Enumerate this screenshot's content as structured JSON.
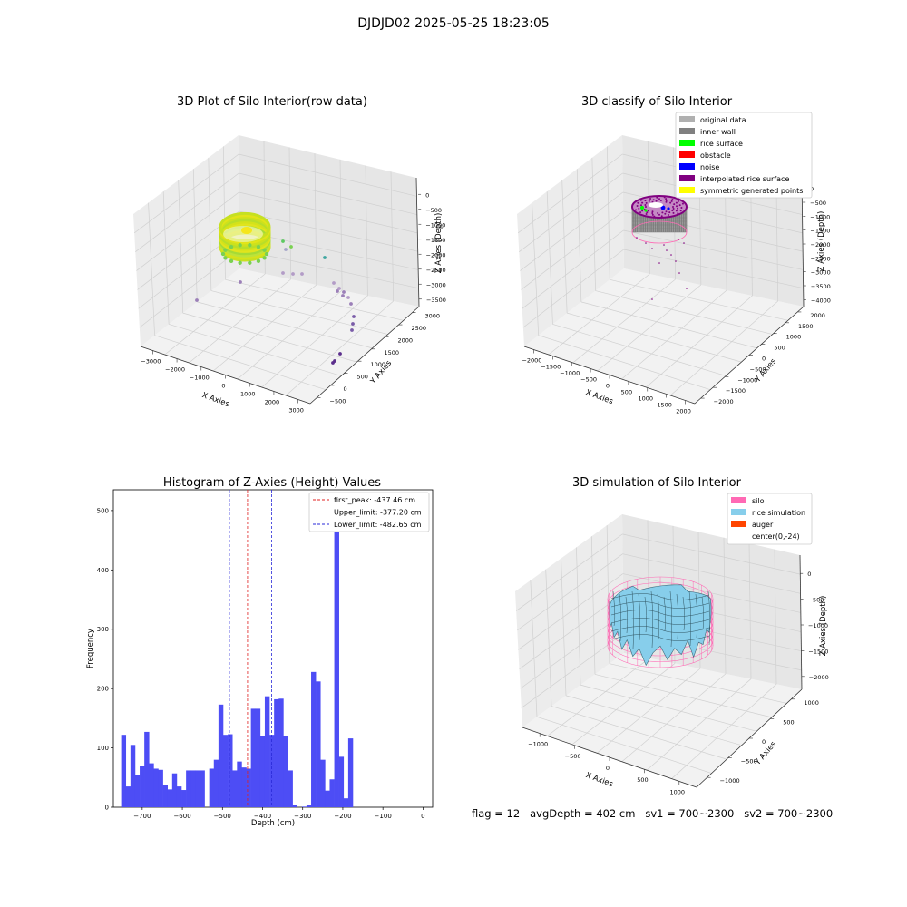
{
  "suptitle": "DJDJD02 2025-05-25 18:23:05",
  "footer": "flag = 12   avgDepth = 402 cm   sv1 = 700~2300   sv2 = 700~2300",
  "colors": {
    "hist_bar": "#4d4df5",
    "first_peak": "#e02020",
    "limit_lines": "#2a2ad8",
    "silo": "#ff69b4",
    "rice_simulation": "#87ceeb",
    "auger": "#ff4500",
    "original_data": "#b0b0b0",
    "inner_wall": "#808080",
    "rice_surface": "#00ff00",
    "obstacle": "#ff0000",
    "noise": "#0000ff",
    "interpolated_rice_surface": "#800080",
    "symmetric_generated_points": "#ffff00"
  },
  "chart_data": [
    {
      "type": "scatter",
      "projection": "3d",
      "title": "3D Plot of Silo Interior(row data)",
      "xlabel": "X Axies",
      "ylabel": "Y Axies",
      "zlabel": "Z Axies (Depth)",
      "x_ticks": [
        "−3000",
        "−2000",
        "−1000",
        "0",
        "1000",
        "2000",
        "3000"
      ],
      "y_ticks": [
        "−500",
        "0",
        "500",
        "1000",
        "1500",
        "2000",
        "2500",
        "3000"
      ],
      "z_ticks": [
        "0",
        "−500",
        "−1000",
        "−1500",
        "−2000",
        "−2500",
        "−3000",
        "−3500"
      ],
      "colormap": "viridis",
      "grid": true
    },
    {
      "type": "scatter",
      "projection": "3d",
      "title": "3D classify of Silo Interior",
      "xlabel": "X Axies",
      "ylabel": "Y Axies",
      "zlabel": "Z Axies (Depth)",
      "x_ticks": [
        "−2000",
        "−1500",
        "−1000",
        "−500",
        "0",
        "500",
        "1000",
        "1500",
        "2000"
      ],
      "y_ticks": [
        "−2000",
        "−1500",
        "−1000",
        "−500",
        "0",
        "500",
        "1000",
        "1500",
        "2000"
      ],
      "z_ticks": [
        "0",
        "−500",
        "−1000",
        "−1500",
        "−2000",
        "−2500",
        "−3000",
        "−3500",
        "−4000"
      ],
      "legend_position": "top-right",
      "legend": [
        {
          "label": "original data",
          "color": "#b0b0b0"
        },
        {
          "label": "inner wall",
          "color": "#808080"
        },
        {
          "label": "rice surface",
          "color": "#00ff00"
        },
        {
          "label": "obstacle",
          "color": "#ff0000"
        },
        {
          "label": "noise",
          "color": "#0000ff"
        },
        {
          "label": "interpolated rice surface",
          "color": "#800080"
        },
        {
          "label": "symmetric generated points",
          "color": "#ffff00"
        }
      ],
      "grid": true
    },
    {
      "type": "bar",
      "title": "Histogram of Z-Axies (Height) Values",
      "xlabel": "Depth (cm)",
      "ylabel": "Frequency",
      "xlim": [
        -772,
        24
      ],
      "ylim": [
        0,
        535
      ],
      "x_ticks": [
        -700,
        -600,
        -500,
        -400,
        -300,
        -200,
        -100,
        0
      ],
      "y_ticks": [
        0,
        100,
        200,
        300,
        400,
        500
      ],
      "bin_start": -752.5,
      "bin_width": 11.55,
      "values": [
        122,
        35,
        105,
        55,
        70,
        127,
        74,
        65,
        63,
        37,
        30,
        57,
        35,
        29,
        62,
        62,
        62,
        62,
        0,
        65,
        80,
        173,
        122,
        123,
        62,
        77,
        67,
        65,
        166,
        166,
        120,
        187,
        122,
        182,
        183,
        120,
        62,
        4,
        0,
        1,
        3,
        228,
        212,
        80,
        28,
        47,
        512,
        85,
        15,
        116
      ],
      "vlines": [
        {
          "label": "first_peak: -437.46 cm",
          "x": -437.46,
          "color": "#e02020"
        },
        {
          "label": "Upper_limit: -377.20 cm",
          "x": -377.2,
          "color": "#2a2ad8"
        },
        {
          "label": "Lower_limit: -482.65 cm",
          "x": -482.65,
          "color": "#2a2ad8"
        }
      ],
      "legend_position": "top-right",
      "grid": false
    },
    {
      "type": "surface",
      "projection": "3d",
      "title": "3D simulation of Silo Interior",
      "xlabel": "X Axies",
      "ylabel": "Y Axies",
      "zlabel": "Z Axies (Depth)",
      "x_ticks": [
        "−1000",
        "−500",
        "0",
        "500",
        "1000"
      ],
      "y_ticks": [
        "−1000",
        "−500",
        "0",
        "500",
        "1000"
      ],
      "z_ticks": [
        "0",
        "−500",
        "−1000",
        "−1500",
        "−2000"
      ],
      "legend_position": "top-right",
      "legend": [
        {
          "label": "silo",
          "color": "#ff69b4"
        },
        {
          "label": "rice simulation",
          "color": "#87ceeb"
        },
        {
          "label": "auger",
          "color": "#ff4500"
        },
        {
          "label": "center(0,-24)",
          "color": ""
        }
      ],
      "grid": true
    }
  ]
}
